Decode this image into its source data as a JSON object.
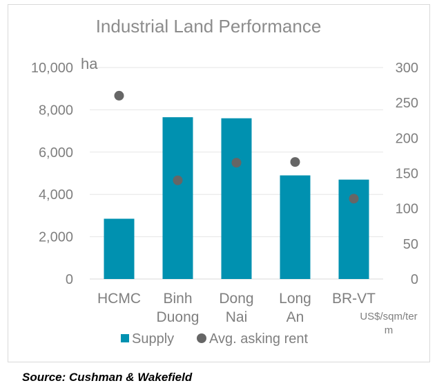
{
  "chart_data": {
    "type": "bar",
    "title": "Industrial Land Performance",
    "categories": [
      [
        "HCMC"
      ],
      [
        "Binh",
        "Duong"
      ],
      [
        "Dong",
        "Nai"
      ],
      [
        "Long",
        "An"
      ],
      [
        "BR-VT"
      ]
    ],
    "series": [
      {
        "name": "Supply",
        "type": "bar",
        "axis": "left",
        "color": "#0091b0",
        "values": [
          2850,
          7650,
          7600,
          4900,
          4700
        ]
      },
      {
        "name": "Avg. asking rent",
        "type": "scatter",
        "axis": "right",
        "color": "#666666",
        "values": [
          260,
          140,
          165,
          166,
          114
        ]
      }
    ],
    "y_left": {
      "unit_label": "ha",
      "min": 0,
      "max": 10000,
      "step": 2000,
      "tick_labels": [
        "0",
        "2,000",
        "4,000",
        "6,000",
        "8,000",
        "10,000"
      ]
    },
    "y_right": {
      "unit_label": [
        "US$/sqm/ter",
        "m"
      ],
      "min": 0,
      "max": 300,
      "step": 50,
      "tick_labels": [
        "0",
        "50",
        "100",
        "150",
        "200",
        "250",
        "300"
      ]
    },
    "grid": true,
    "legend_position": "bottom"
  },
  "source": "Source: Cushman & Wakefield"
}
